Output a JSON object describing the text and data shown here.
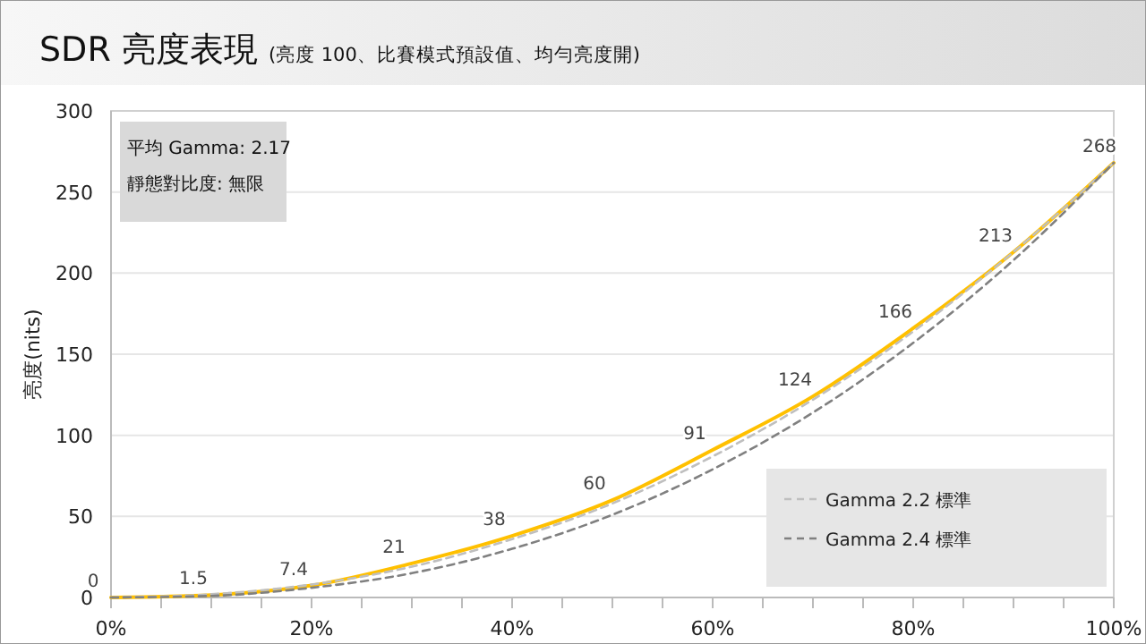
{
  "chart_data": {
    "type": "line",
    "title": "SDR 亮度表現",
    "subtitle": "(亮度 100、比賽模式預設值、均勻亮度開)",
    "ylabel": "亮度(nits)",
    "annotations": [
      "平均 Gamma: 2.17",
      "靜態對比度: 無限"
    ],
    "x": [
      0,
      10,
      20,
      30,
      40,
      50,
      60,
      70,
      80,
      90,
      100
    ],
    "series": [
      {
        "color": "#ffc000",
        "values": [
          0,
          1.5,
          7.4,
          21,
          38,
          60,
          91,
          124,
          166,
          213,
          268
        ],
        "data_labels": true,
        "line_style": "solid"
      },
      {
        "name": "Gamma 2.2 標準",
        "color": "#bfbfbf",
        "values": [
          0,
          2,
          8,
          19,
          36,
          58,
          87,
          122,
          164,
          213,
          268
        ],
        "line_style": "dashed"
      },
      {
        "name": "Gamma 2.4 標準",
        "color": "#808080",
        "values": [
          0,
          1,
          6,
          15,
          30,
          51,
          79,
          114,
          157,
          208,
          268
        ],
        "line_style": "dashed"
      }
    ],
    "xlim": [
      0,
      100
    ],
    "xticks": [
      {
        "value": 0,
        "label": "0%"
      },
      {
        "value": 5,
        "label": null
      },
      {
        "value": 10,
        "label": null
      },
      {
        "value": 15,
        "label": null
      },
      {
        "value": 20,
        "label": "20%"
      },
      {
        "value": 25,
        "label": null
      },
      {
        "value": 30,
        "label": null
      },
      {
        "value": 35,
        "label": null
      },
      {
        "value": 40,
        "label": "40%"
      },
      {
        "value": 45,
        "label": null
      },
      {
        "value": 50,
        "label": null
      },
      {
        "value": 55,
        "label": null
      },
      {
        "value": 60,
        "label": "60%"
      },
      {
        "value": 65,
        "label": null
      },
      {
        "value": 70,
        "label": null
      },
      {
        "value": 75,
        "label": null
      },
      {
        "value": 80,
        "label": "80%"
      },
      {
        "value": 85,
        "label": null
      },
      {
        "value": 90,
        "label": null
      },
      {
        "value": 95,
        "label": null
      },
      {
        "value": 100,
        "label": "100%"
      }
    ],
    "ylim": [
      0,
      300
    ],
    "yticks": [
      0,
      50,
      100,
      150,
      200,
      250,
      300
    ],
    "grid": "y",
    "legend": "bottom right",
    "marker": "none"
  }
}
